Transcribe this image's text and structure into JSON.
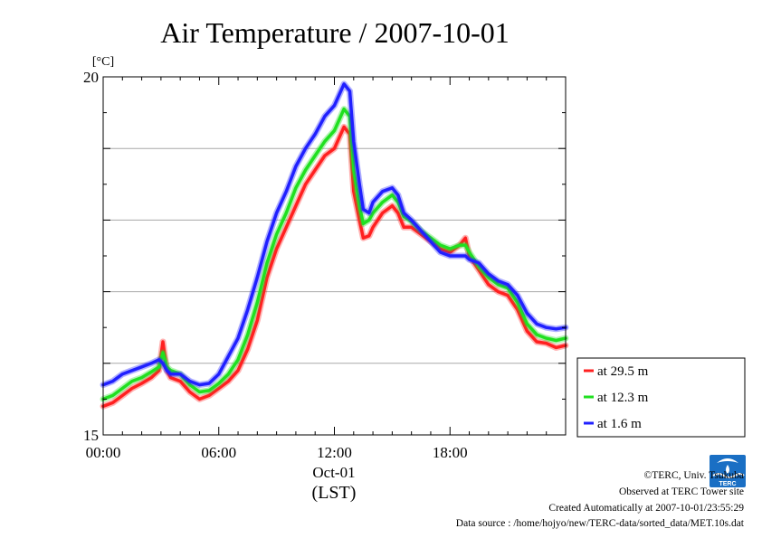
{
  "chart_data": {
    "type": "line",
    "title": "Air Temperature / 2007-10-01",
    "ylabel": "[°C]",
    "xlabel_date": "Oct-01",
    "xlabel_unit": "(LST)",
    "x_tick_labels": [
      "00:00",
      "06:00",
      "12:00",
      "18:00"
    ],
    "y_tick_labels": [
      "15",
      "20"
    ],
    "xlim_hours": [
      0,
      24
    ],
    "ylim": [
      15,
      20
    ],
    "grid": true,
    "legend_position": "lower-right-outside",
    "series": [
      {
        "name": "at 29.5 m",
        "color": "#ff2020",
        "x": [
          0,
          0.5,
          1,
          1.5,
          2,
          2.5,
          2.9,
          3.1,
          3.3,
          3.5,
          4,
          4.5,
          5,
          5.5,
          6,
          6.5,
          7,
          7.5,
          8,
          8.5,
          9,
          9.5,
          10,
          10.5,
          11,
          11.5,
          12,
          12.5,
          12.8,
          13,
          13.3,
          13.5,
          13.8,
          14,
          14.5,
          15,
          15.3,
          15.6,
          16,
          16.5,
          17,
          17.5,
          18,
          18.5,
          18.8,
          19,
          19.5,
          20,
          20.5,
          21,
          21.5,
          22,
          22.5,
          23,
          23.5,
          24
        ],
        "values": [
          15.4,
          15.45,
          15.55,
          15.65,
          15.72,
          15.8,
          15.9,
          16.3,
          15.9,
          15.8,
          15.75,
          15.6,
          15.5,
          15.55,
          15.65,
          15.75,
          15.9,
          16.2,
          16.6,
          17.2,
          17.6,
          17.9,
          18.2,
          18.5,
          18.7,
          18.9,
          19.0,
          19.3,
          19.2,
          18.4,
          18.0,
          17.75,
          17.78,
          17.9,
          18.1,
          18.2,
          18.1,
          17.9,
          17.9,
          17.8,
          17.7,
          17.6,
          17.55,
          17.65,
          17.75,
          17.5,
          17.3,
          17.1,
          17.0,
          16.95,
          16.75,
          16.45,
          16.3,
          16.28,
          16.22,
          16.25
        ]
      },
      {
        "name": "at 12.3 m",
        "color": "#20e020",
        "x": [
          0,
          0.5,
          1,
          1.5,
          2,
          2.5,
          2.9,
          3.1,
          3.3,
          3.5,
          4,
          4.5,
          5,
          5.5,
          6,
          6.5,
          7,
          7.5,
          8,
          8.5,
          9,
          9.5,
          10,
          10.5,
          11,
          11.5,
          12,
          12.5,
          12.8,
          13,
          13.3,
          13.5,
          13.8,
          14,
          14.5,
          15,
          15.3,
          15.6,
          16,
          16.5,
          17,
          17.5,
          18,
          18.5,
          18.8,
          19,
          19.5,
          20,
          20.5,
          21,
          21.5,
          22,
          22.5,
          23,
          23.5,
          24
        ],
        "values": [
          15.5,
          15.55,
          15.65,
          15.75,
          15.8,
          15.88,
          15.95,
          16.15,
          15.95,
          15.9,
          15.85,
          15.7,
          15.6,
          15.62,
          15.72,
          15.85,
          16.05,
          16.4,
          16.85,
          17.4,
          17.8,
          18.1,
          18.45,
          18.7,
          18.9,
          19.1,
          19.25,
          19.55,
          19.45,
          18.7,
          18.2,
          17.95,
          18.0,
          18.1,
          18.25,
          18.35,
          18.25,
          18.05,
          17.98,
          17.85,
          17.75,
          17.65,
          17.6,
          17.65,
          17.65,
          17.55,
          17.35,
          17.2,
          17.1,
          17.05,
          16.85,
          16.55,
          16.4,
          16.35,
          16.32,
          16.35
        ]
      },
      {
        "name": "at 1.6 m",
        "color": "#2020ff",
        "x": [
          0,
          0.5,
          1,
          1.5,
          2,
          2.5,
          2.9,
          3.1,
          3.3,
          3.5,
          4,
          4.5,
          5,
          5.5,
          6,
          6.5,
          7,
          7.5,
          8,
          8.5,
          9,
          9.5,
          10,
          10.5,
          11,
          11.5,
          12,
          12.5,
          12.8,
          13,
          13.3,
          13.5,
          13.8,
          14,
          14.5,
          15,
          15.3,
          15.6,
          16,
          16.5,
          17,
          17.5,
          18,
          18.5,
          18.8,
          19,
          19.5,
          20,
          20.5,
          21,
          21.5,
          22,
          22.5,
          23,
          23.5,
          24
        ],
        "values": [
          15.7,
          15.75,
          15.85,
          15.9,
          15.95,
          16.0,
          16.05,
          16.0,
          15.9,
          15.85,
          15.85,
          15.75,
          15.7,
          15.72,
          15.85,
          16.1,
          16.35,
          16.75,
          17.2,
          17.7,
          18.1,
          18.4,
          18.75,
          19.0,
          19.2,
          19.45,
          19.6,
          19.9,
          19.8,
          19.1,
          18.5,
          18.15,
          18.1,
          18.25,
          18.4,
          18.45,
          18.35,
          18.1,
          18.0,
          17.85,
          17.7,
          17.55,
          17.5,
          17.5,
          17.5,
          17.45,
          17.4,
          17.25,
          17.15,
          17.1,
          16.95,
          16.7,
          16.55,
          16.5,
          16.48,
          16.5
        ]
      }
    ]
  },
  "credits": {
    "copyright": "©TERC, Univ. Tsukuba",
    "observed": "Observed at TERC Tower site",
    "created": "Created Automatically at 2007-10-01/23:55:29",
    "source": "Data source : /home/hojyo/new/TERC-data/sorted_data/MET.10s.dat"
  },
  "logo": {
    "text": "TERC",
    "color": "#1a6fc4"
  }
}
